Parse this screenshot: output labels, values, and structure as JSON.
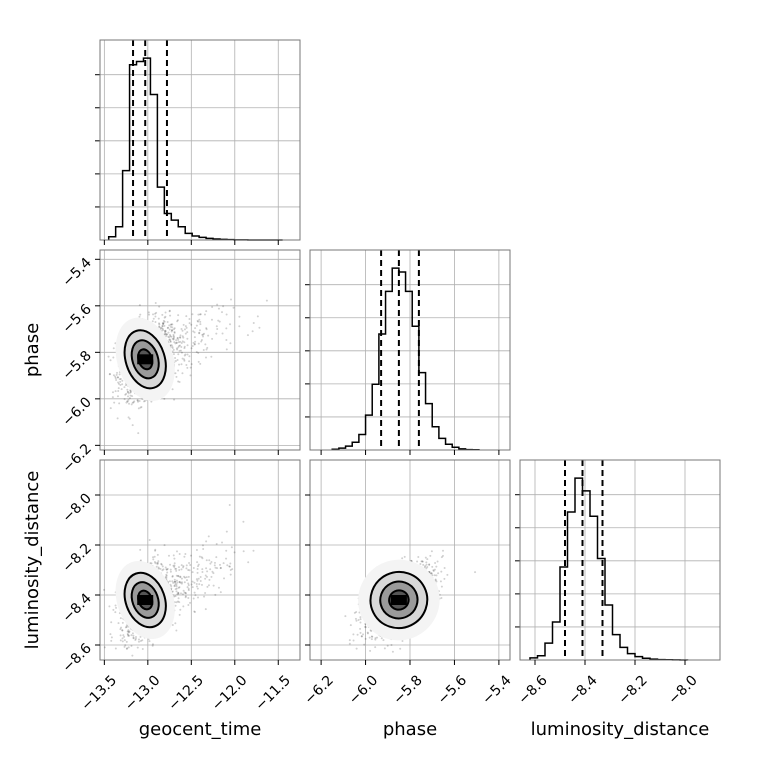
{
  "figure": {
    "type": "corner-plot",
    "parameters": [
      "geocent_time",
      "phase",
      "luminosity_distance"
    ]
  },
  "chart_data": [
    {
      "id": "hist-geocent_time",
      "type": "histogram",
      "parameter": "geocent_time",
      "xlim": [
        -13.55,
        -11.25
      ],
      "bin_edges": [
        -13.45,
        -13.37,
        -13.29,
        -13.21,
        -13.13,
        -13.05,
        -12.97,
        -12.89,
        -12.81,
        -12.73,
        -12.65,
        -12.57,
        -12.49,
        -12.41,
        -12.33,
        -12.25,
        -12.17,
        -12.09,
        -12.01,
        -11.93,
        -11.85,
        -11.77,
        -11.69,
        -11.61,
        -11.53,
        -11.45
      ],
      "counts": [
        1,
        4,
        21,
        53,
        54,
        55,
        44,
        16,
        8,
        6,
        4,
        2,
        1.2,
        0.8,
        0.5,
        0.3,
        0.2,
        0.1,
        0.05,
        0.02,
        0.01,
        0,
        0,
        0,
        0
      ],
      "quantiles": [
        -13.17,
        -13.03,
        -12.78
      ],
      "grid": true
    },
    {
      "id": "scatter-geocent_time-phase",
      "type": "scatter-density",
      "x_parameter": "geocent_time",
      "y_parameter": "phase",
      "xlim": [
        -13.55,
        -11.25
      ],
      "ylim": [
        -6.22,
        -5.36
      ],
      "peak": [
        -13.03,
        -5.83
      ],
      "spread": [
        0.14,
        0.08
      ],
      "correlation": 0.35,
      "tail": "extends toward -11.5 in geocent_time",
      "grid": true
    },
    {
      "id": "hist-phase",
      "type": "histogram",
      "parameter": "phase",
      "xlim": [
        -6.25,
        -5.35
      ],
      "bin_edges": [
        -6.15,
        -6.12,
        -6.09,
        -6.06,
        -6.03,
        -6.0,
        -5.97,
        -5.94,
        -5.91,
        -5.88,
        -5.85,
        -5.82,
        -5.79,
        -5.76,
        -5.73,
        -5.7,
        -5.67,
        -5.64,
        -5.61,
        -5.58,
        -5.55,
        -5.52,
        -5.49
      ],
      "counts": [
        0.2,
        0.5,
        1,
        2,
        4,
        9,
        17,
        30,
        41,
        47,
        46,
        41,
        32,
        20,
        12,
        6,
        3,
        1.5,
        0.7,
        0.3,
        0.1,
        0.05
      ],
      "quantiles": [
        -5.93,
        -5.85,
        -5.76
      ],
      "grid": true
    },
    {
      "id": "scatter-geocent_time-luminosity_distance",
      "type": "scatter-density",
      "x_parameter": "geocent_time",
      "y_parameter": "luminosity_distance",
      "xlim": [
        -13.55,
        -11.25
      ],
      "ylim": [
        -8.66,
        -7.86
      ],
      "peak": [
        -13.03,
        -8.42
      ],
      "spread": [
        0.14,
        0.07
      ],
      "correlation": 0.4,
      "tail": "extends toward -12.0 in geocent_time",
      "grid": true
    },
    {
      "id": "scatter-phase-luminosity_distance",
      "type": "scatter-density",
      "x_parameter": "phase",
      "y_parameter": "luminosity_distance",
      "xlim": [
        -6.25,
        -5.35
      ],
      "ylim": [
        -8.66,
        -7.86
      ],
      "peak": [
        -5.85,
        -8.42
      ],
      "spread": [
        0.08,
        0.07
      ],
      "correlation": 0.55,
      "grid": true
    },
    {
      "id": "hist-luminosity_distance",
      "type": "histogram",
      "parameter": "luminosity_distance",
      "xlim": [
        -8.66,
        -7.86
      ],
      "bin_edges": [
        -8.62,
        -8.59,
        -8.56,
        -8.53,
        -8.5,
        -8.47,
        -8.44,
        -8.41,
        -8.38,
        -8.35,
        -8.32,
        -8.29,
        -8.26,
        -8.23,
        -8.2,
        -8.17,
        -8.14,
        -8.11,
        -8.08,
        -8.05,
        -8.02,
        -7.99
      ],
      "counts": [
        0.5,
        1,
        4,
        9,
        22,
        35,
        43,
        40,
        34,
        24,
        13,
        6,
        3,
        1.5,
        0.8,
        0.4,
        0.2,
        0.1,
        0.05,
        0.02,
        0.01
      ],
      "quantiles": [
        -8.48,
        -8.41,
        -8.33
      ],
      "grid": true
    }
  ],
  "axes": {
    "geocent_time": {
      "label": "geocent_time",
      "ticks": [
        -13.5,
        -13.0,
        -12.5,
        -12.0,
        -11.5
      ],
      "tick_labels": [
        "−13.5",
        "−13.0",
        "−12.5",
        "−12.0",
        "−11.5"
      ]
    },
    "phase_x": {
      "label": "phase",
      "ticks": [
        -6.2,
        -6.0,
        -5.8,
        -5.6,
        -5.4
      ],
      "tick_labels": [
        "−6.2",
        "−6.0",
        "−5.8",
        "−5.6",
        "−5.4"
      ]
    },
    "phase_y": {
      "label": "phase",
      "ticks": [
        -5.4,
        -5.6,
        -5.8,
        -6.0,
        -6.2
      ],
      "tick_labels": [
        "−5.4",
        "−5.6",
        "−5.8",
        "−6.0",
        "−6.2"
      ]
    },
    "luminosity_distance_x": {
      "label": "luminosity_distance",
      "ticks": [
        -8.6,
        -8.4,
        -8.2,
        -8.0
      ],
      "tick_labels": [
        "−8.6",
        "−8.4",
        "−8.2",
        "−8.0"
      ]
    },
    "luminosity_distance_y": {
      "label": "luminosity_distance",
      "ticks": [
        -8.0,
        -8.2,
        -8.4,
        -8.6
      ],
      "tick_labels": [
        "−8.0",
        "−8.2",
        "−8.4",
        "−8.6"
      ]
    }
  },
  "colors": {
    "line": "#000000",
    "grid": "#b0b0b0",
    "points": "#000000"
  }
}
